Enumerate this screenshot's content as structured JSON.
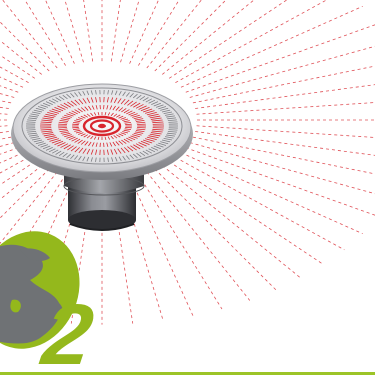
{
  "illustration": {
    "step_number": "2",
    "colors": {
      "accent_green": "#94b81c",
      "rays_red": "#d8262e",
      "globe_gray": "#6f7275",
      "metal_light": "#e4e4e6",
      "metal_dark": "#4a4b4f",
      "rule_green": "#9cc427"
    },
    "icons": {
      "device": "ceiling-speaker-icon",
      "globe": "globe-icon"
    }
  }
}
